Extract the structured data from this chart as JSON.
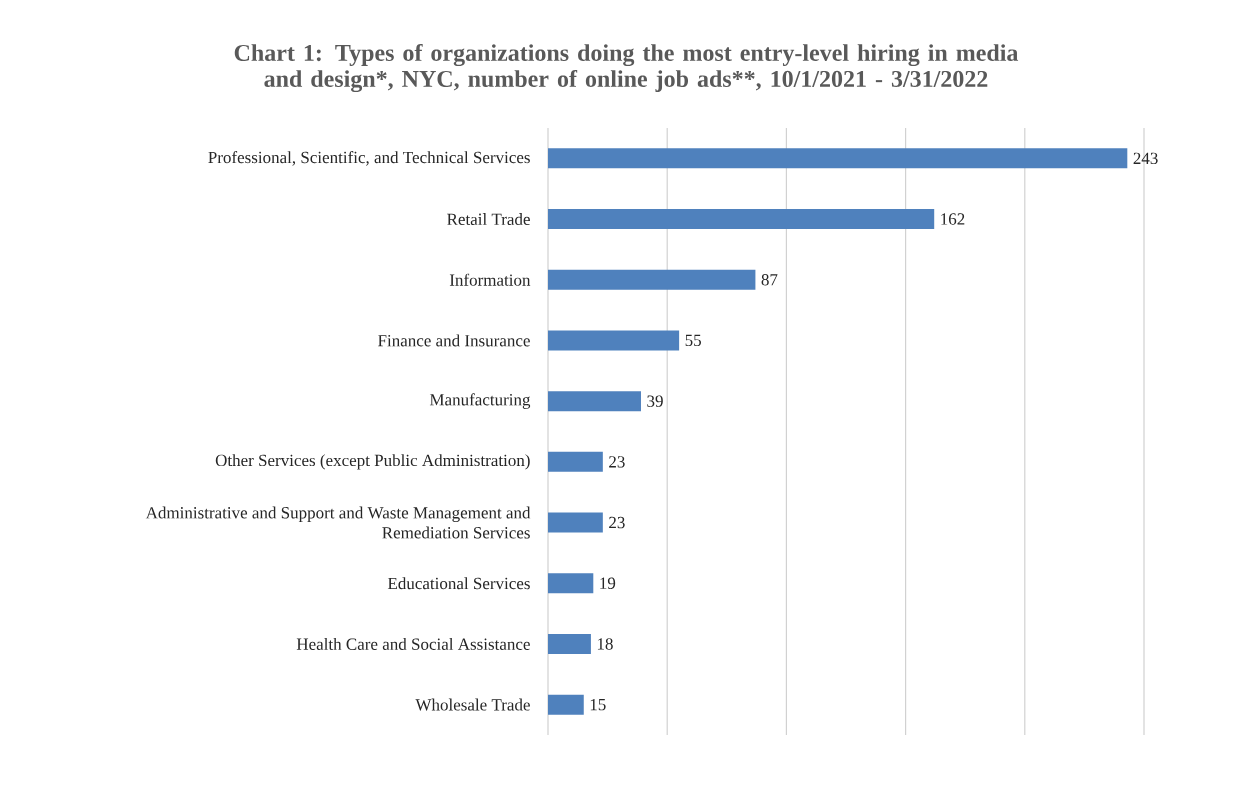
{
  "chart_data": {
    "type": "bar",
    "orientation": "horizontal",
    "title": "Chart 1: Types of organizations doing the most entry-level hiring in media and design*, NYC, number of online job ads**, 10/1/2021 - 3/31/2022",
    "categories": [
      "Professional, Scientific, and Technical Services",
      "Retail Trade",
      "Information",
      "Finance and Insurance",
      "Manufacturing",
      "Other Services (except Public Administration)",
      "Administrative and Support and Waste Management and Remediation Services",
      "Educational Services",
      "Health Care and Social Assistance",
      "Wholesale Trade"
    ],
    "values": [
      243,
      162,
      87,
      55,
      39,
      23,
      23,
      19,
      18,
      15
    ],
    "color": "#4f81bd",
    "data_labels": true,
    "grid": "x",
    "tick_labels": "y",
    "xlim": [
      0,
      250
    ],
    "xticks": [
      {
        "value": 0,
        "label": null
      },
      {
        "value": 50,
        "label": null
      },
      {
        "value": 100,
        "label": null
      },
      {
        "value": 150,
        "label": null
      },
      {
        "value": 200,
        "label": null
      },
      {
        "value": 250,
        "label": null
      }
    ]
  }
}
